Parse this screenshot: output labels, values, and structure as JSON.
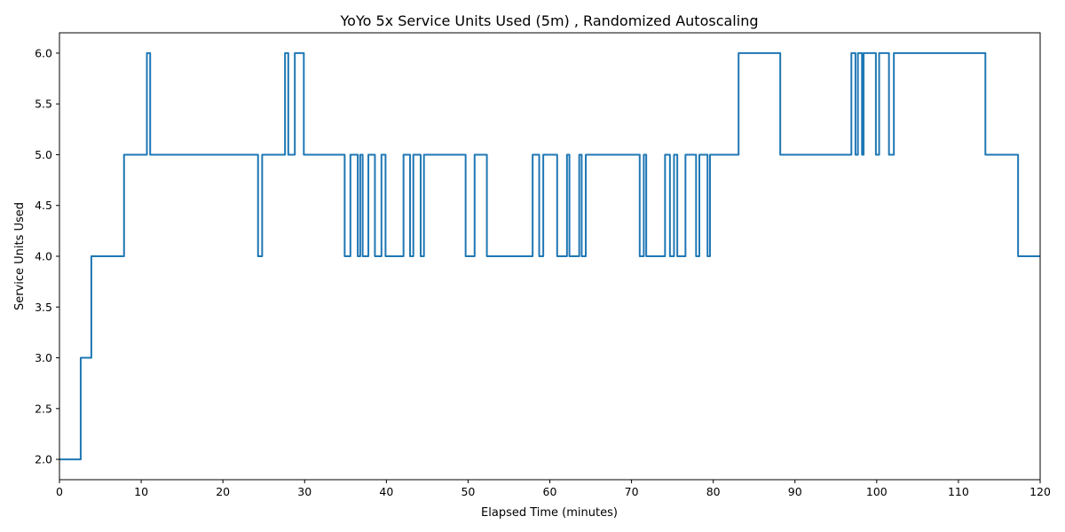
{
  "chart_data": {
    "type": "line",
    "title": "YoYo 5x Service Units Used (5m) , Randomized Autoscaling",
    "xlabel": "Elapsed Time (minutes)",
    "ylabel": "Service Units Used",
    "xlim": [
      0,
      120
    ],
    "ylim": [
      1.8,
      6.2
    ],
    "xticks": [
      "0",
      "10",
      "20",
      "30",
      "40",
      "50",
      "60",
      "70",
      "80",
      "90",
      "100",
      "110",
      "120"
    ],
    "yticks": [
      "2.0",
      "2.5",
      "3.0",
      "3.5",
      "4.0",
      "4.5",
      "5.0",
      "5.5",
      "6.0"
    ],
    "grid": false,
    "color": "#1f77b4",
    "series": [
      {
        "steps": [
          [
            0.0,
            2
          ],
          [
            2.6,
            3
          ],
          [
            3.9,
            4
          ],
          [
            7.9,
            5
          ],
          [
            10.7,
            6
          ],
          [
            11.1,
            5
          ],
          [
            24.3,
            4
          ],
          [
            24.8,
            5
          ],
          [
            27.6,
            6
          ],
          [
            28.0,
            5
          ],
          [
            28.8,
            6
          ],
          [
            29.9,
            5
          ],
          [
            34.9,
            4
          ],
          [
            35.6,
            5
          ],
          [
            36.5,
            4
          ],
          [
            36.8,
            5
          ],
          [
            37.1,
            4
          ],
          [
            37.8,
            5
          ],
          [
            38.6,
            4
          ],
          [
            39.4,
            5
          ],
          [
            39.9,
            4
          ],
          [
            42.1,
            5
          ],
          [
            42.9,
            4
          ],
          [
            43.3,
            5
          ],
          [
            44.2,
            4
          ],
          [
            44.6,
            5
          ],
          [
            49.7,
            4
          ],
          [
            50.8,
            5
          ],
          [
            52.3,
            4
          ],
          [
            57.9,
            5
          ],
          [
            58.7,
            4
          ],
          [
            59.2,
            5
          ],
          [
            60.9,
            4
          ],
          [
            62.1,
            5
          ],
          [
            62.4,
            4
          ],
          [
            63.6,
            5
          ],
          [
            63.9,
            4
          ],
          [
            64.4,
            5
          ],
          [
            71.0,
            4
          ],
          [
            71.5,
            5
          ],
          [
            71.8,
            4
          ],
          [
            74.1,
            5
          ],
          [
            74.7,
            4
          ],
          [
            75.2,
            5
          ],
          [
            75.6,
            4
          ],
          [
            76.6,
            5
          ],
          [
            77.9,
            4
          ],
          [
            78.3,
            5
          ],
          [
            79.3,
            4
          ],
          [
            79.6,
            5
          ],
          [
            83.1,
            6
          ],
          [
            88.2,
            5
          ],
          [
            96.9,
            6
          ],
          [
            97.4,
            5
          ],
          [
            97.7,
            6
          ],
          [
            98.2,
            5
          ],
          [
            98.4,
            6
          ],
          [
            99.9,
            5
          ],
          [
            100.3,
            6
          ],
          [
            101.5,
            5
          ],
          [
            102.1,
            6
          ],
          [
            113.3,
            5
          ],
          [
            117.3,
            4
          ],
          [
            120.0,
            4
          ]
        ]
      }
    ]
  }
}
